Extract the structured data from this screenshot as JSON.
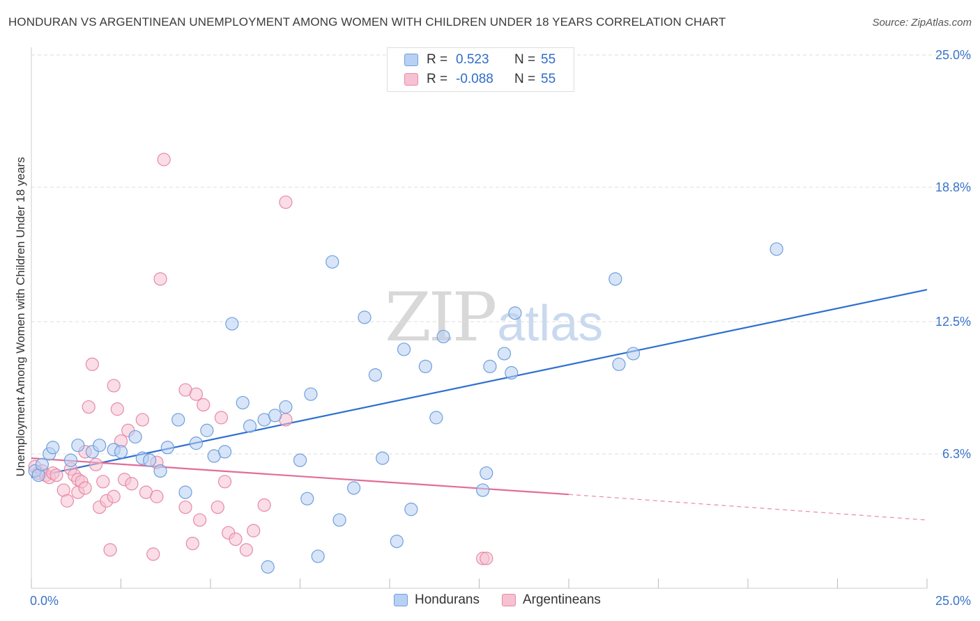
{
  "header": {
    "title": "HONDURAN VS ARGENTINEAN UNEMPLOYMENT AMONG WOMEN WITH CHILDREN UNDER 18 YEARS CORRELATION CHART",
    "source": "Source: ZipAtlas.com"
  },
  "watermark": {
    "zip": "ZIP",
    "atlas": "atlas"
  },
  "legend": {
    "rows": [
      {
        "label": "R =",
        "r": "0.523",
        "n_label": "N =",
        "n": "55"
      },
      {
        "label": "R =",
        "r": "-0.088",
        "n_label": "N =",
        "n": "55"
      }
    ]
  },
  "bottom_legend": {
    "hondurans": "Hondurans",
    "argentineans": "Argentineans"
  },
  "colors": {
    "hondurans_fill": "#b8d0f3",
    "hondurans_stroke": "#6f9fdc",
    "hondurans_line": "#2d6fd0",
    "argentineans_fill": "#f6c1d1",
    "argentineans_stroke": "#e68aa7",
    "argentineans_line": "#e36c96",
    "tick_text": "#3a73c9",
    "grid": "#dddddd"
  },
  "chart_data": {
    "type": "scatter",
    "title": "HONDURAN VS ARGENTINEAN UNEMPLOYMENT AMONG WOMEN WITH CHILDREN UNDER 18 YEARS CORRELATION CHART",
    "xlabel": "",
    "ylabel": "Unemployment Among Women with Children Under 18 years",
    "xlim": [
      0,
      25
    ],
    "ylim": [
      0,
      25
    ],
    "x_tick_labels": [
      "0.0%",
      "25.0%"
    ],
    "y_tick_labels": [
      "6.3%",
      "12.5%",
      "18.8%",
      "25.0%"
    ],
    "y_ticks": [
      6.3,
      12.5,
      18.8,
      25.0
    ],
    "grid": "horizontal dashed",
    "legend_position": "top-center",
    "series": [
      {
        "name": "Hondurans",
        "r": 0.523,
        "n": 55,
        "trend": {
          "x": [
            0.0,
            25.0
          ],
          "y": [
            5.2,
            14.0
          ]
        },
        "points": [
          [
            0.1,
            5.5
          ],
          [
            0.2,
            5.3
          ],
          [
            0.3,
            5.8
          ],
          [
            0.5,
            6.3
          ],
          [
            0.6,
            6.6
          ],
          [
            1.1,
            6.0
          ],
          [
            1.3,
            6.7
          ],
          [
            1.7,
            6.4
          ],
          [
            1.9,
            6.7
          ],
          [
            2.3,
            6.5
          ],
          [
            2.5,
            6.4
          ],
          [
            2.9,
            7.1
          ],
          [
            3.1,
            6.1
          ],
          [
            3.3,
            6.0
          ],
          [
            3.6,
            5.5
          ],
          [
            3.8,
            6.6
          ],
          [
            4.1,
            7.9
          ],
          [
            4.3,
            4.5
          ],
          [
            4.6,
            6.8
          ],
          [
            4.9,
            7.4
          ],
          [
            5.1,
            6.2
          ],
          [
            5.4,
            6.4
          ],
          [
            5.6,
            12.4
          ],
          [
            5.9,
            8.7
          ],
          [
            6.1,
            7.6
          ],
          [
            6.5,
            7.9
          ],
          [
            6.6,
            1.0
          ],
          [
            6.8,
            8.1
          ],
          [
            7.1,
            8.5
          ],
          [
            7.5,
            6.0
          ],
          [
            7.7,
            4.2
          ],
          [
            7.8,
            9.1
          ],
          [
            8.0,
            1.5
          ],
          [
            8.4,
            15.3
          ],
          [
            8.6,
            3.2
          ],
          [
            9.0,
            4.7
          ],
          [
            9.3,
            12.7
          ],
          [
            9.6,
            10.0
          ],
          [
            9.8,
            6.1
          ],
          [
            10.2,
            2.2
          ],
          [
            10.4,
            11.2
          ],
          [
            10.6,
            3.7
          ],
          [
            11.0,
            10.4
          ],
          [
            11.3,
            8.0
          ],
          [
            11.5,
            11.8
          ],
          [
            12.6,
            4.6
          ],
          [
            12.7,
            5.4
          ],
          [
            12.8,
            10.4
          ],
          [
            13.2,
            11.0
          ],
          [
            13.4,
            10.1
          ],
          [
            13.5,
            12.9
          ],
          [
            16.3,
            14.5
          ],
          [
            16.4,
            10.5
          ],
          [
            16.8,
            11.0
          ],
          [
            20.8,
            15.9
          ]
        ]
      },
      {
        "name": "Argentineans",
        "r": -0.088,
        "n": 55,
        "trend": {
          "x": [
            0.0,
            15.0
          ],
          "y": [
            6.1,
            4.4
          ]
        },
        "trend_dashed": {
          "x": [
            15.0,
            25.0
          ],
          "y": [
            4.4,
            3.2
          ]
        },
        "points": [
          [
            0.1,
            5.7
          ],
          [
            0.2,
            5.4
          ],
          [
            0.3,
            5.5
          ],
          [
            0.4,
            5.3
          ],
          [
            0.5,
            5.2
          ],
          [
            0.6,
            5.4
          ],
          [
            0.7,
            5.3
          ],
          [
            0.9,
            4.6
          ],
          [
            1.0,
            4.1
          ],
          [
            1.1,
            5.6
          ],
          [
            1.2,
            5.3
          ],
          [
            1.3,
            4.5
          ],
          [
            1.3,
            5.1
          ],
          [
            1.4,
            5.0
          ],
          [
            1.5,
            6.4
          ],
          [
            1.5,
            4.7
          ],
          [
            1.6,
            8.5
          ],
          [
            1.7,
            10.5
          ],
          [
            1.8,
            5.8
          ],
          [
            1.9,
            3.8
          ],
          [
            2.0,
            5.0
          ],
          [
            2.1,
            4.1
          ],
          [
            2.2,
            1.8
          ],
          [
            2.3,
            4.3
          ],
          [
            2.3,
            9.5
          ],
          [
            2.4,
            8.4
          ],
          [
            2.5,
            6.9
          ],
          [
            2.6,
            5.1
          ],
          [
            2.7,
            7.4
          ],
          [
            2.8,
            4.9
          ],
          [
            3.1,
            7.9
          ],
          [
            3.2,
            4.5
          ],
          [
            3.4,
            1.6
          ],
          [
            3.5,
            4.3
          ],
          [
            3.6,
            14.5
          ],
          [
            3.7,
            20.1
          ],
          [
            4.3,
            3.8
          ],
          [
            4.3,
            9.3
          ],
          [
            4.5,
            2.1
          ],
          [
            4.6,
            9.1
          ],
          [
            4.7,
            3.2
          ],
          [
            4.8,
            8.6
          ],
          [
            5.2,
            3.8
          ],
          [
            5.3,
            8.0
          ],
          [
            5.4,
            5.0
          ],
          [
            5.5,
            2.6
          ],
          [
            5.7,
            2.3
          ],
          [
            6.0,
            1.8
          ],
          [
            6.2,
            2.7
          ],
          [
            6.5,
            3.9
          ],
          [
            7.1,
            18.1
          ],
          [
            7.1,
            7.9
          ],
          [
            12.6,
            1.4
          ],
          [
            12.7,
            1.4
          ],
          [
            3.5,
            5.9
          ]
        ]
      }
    ]
  }
}
